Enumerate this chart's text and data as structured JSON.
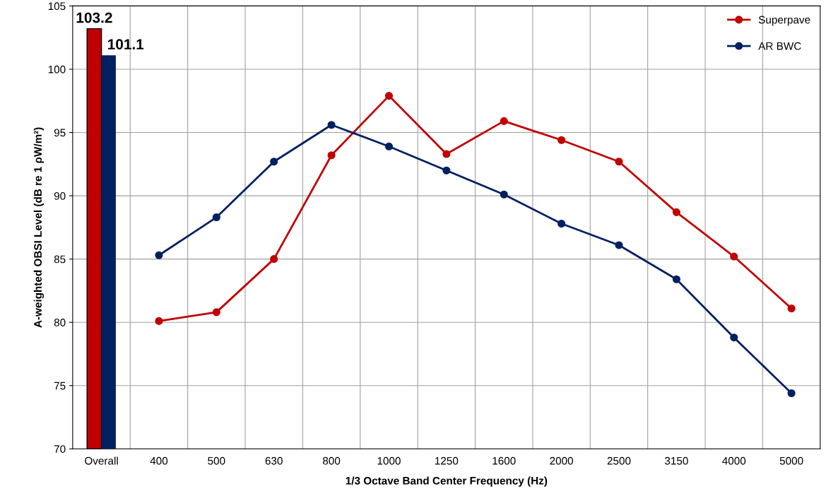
{
  "chart_data": {
    "type": "bar",
    "xlabel": "1/3 Octave Band Center Frequency (Hz)",
    "ylabel": "A-weighted OBSI Level (dB re 1 ρW/m²)",
    "categories": [
      "Overall",
      "400",
      "500",
      "630",
      "800",
      "1000",
      "1250",
      "1600",
      "2000",
      "2500",
      "3150",
      "4000",
      "5000"
    ],
    "series": [
      {
        "color": "#c00000",
        "values": [
          103.2,
          null,
          null,
          null,
          null,
          null,
          null,
          null,
          null,
          null,
          null,
          null,
          null
        ],
        "value_labels": [
          "103.2",
          null,
          null,
          null,
          null,
          null,
          null,
          null,
          null,
          null,
          null,
          null,
          null
        ]
      },
      {
        "color": "#002060",
        "values": [
          101.1,
          null,
          null,
          null,
          null,
          null,
          null,
          null,
          null,
          null,
          null,
          null,
          null
        ],
        "value_labels": [
          "101.1",
          null,
          null,
          null,
          null,
          null,
          null,
          null,
          null,
          null,
          null,
          null,
          null
        ]
      },
      {
        "type": "line",
        "name": "Superpave",
        "color": "#c00000",
        "values": [
          null,
          80.1,
          80.8,
          85.0,
          93.2,
          97.9,
          93.3,
          95.9,
          94.4,
          92.7,
          88.7,
          85.2,
          81.1
        ]
      },
      {
        "type": "line",
        "name": "AR BWC",
        "color": "#002060",
        "values": [
          null,
          85.3,
          88.3,
          92.7,
          95.6,
          93.9,
          92.0,
          90.1,
          87.8,
          86.1,
          83.4,
          78.8,
          74.4
        ]
      }
    ],
    "ylim": [
      70,
      105
    ],
    "yticks": [
      70,
      75,
      80,
      85,
      90,
      95,
      100,
      105
    ],
    "grid": true,
    "legend": "top right",
    "marker": "circle",
    "line_style": "solid"
  }
}
